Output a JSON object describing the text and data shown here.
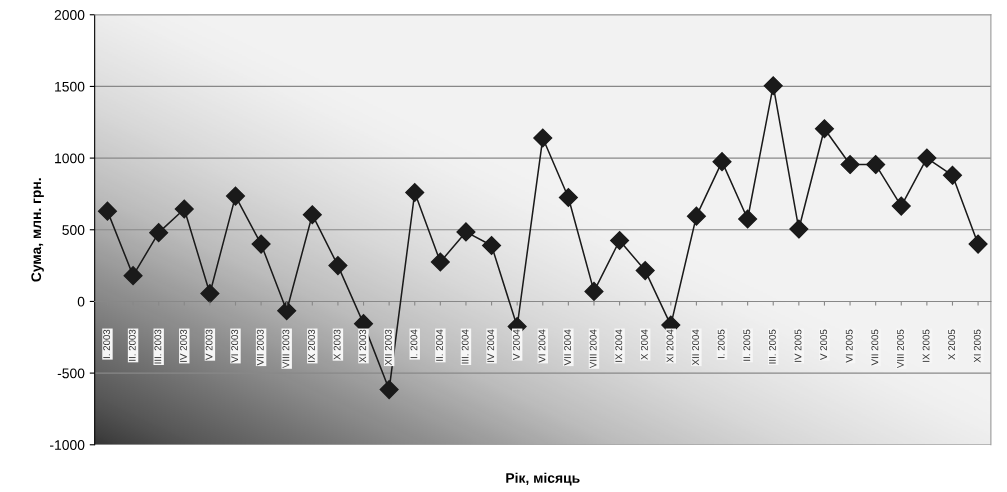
{
  "chart_data": {
    "type": "line",
    "xlabel": "Рік, місяць",
    "ylabel": "Сума, млн. грн.",
    "categories": [
      "I. 2003",
      "II. 2003",
      "III. 2003",
      "IV 2003",
      "V 2003",
      "VI 2003",
      "VII 2003",
      "VIII 2003",
      "IX 2003",
      "X 2003",
      "XI 2003",
      "XII 2003",
      "I. 2004",
      "II. 2004",
      "III. 2004",
      "IV 2004",
      "V 2004",
      "VI 2004",
      "VII 2004",
      "VIII 2004",
      "IX 2004",
      "X 2004",
      "XI 2004",
      "XII 2004",
      "I. 2005",
      "II. 2005",
      "III. 2005",
      "IV 2005",
      "V 2005",
      "VI 2005",
      "VII 2005",
      "VIII 2005",
      "IX 2005",
      "X 2005",
      "XI 2005"
    ],
    "series": [
      {
        "color": "#1a1a1a",
        "values": [
          630,
          180,
          480,
          645,
          55,
          735,
          400,
          -65,
          605,
          250,
          -155,
          -615,
          760,
          275,
          485,
          390,
          -175,
          1140,
          725,
          70,
          425,
          215,
          -165,
          595,
          975,
          575,
          1505,
          505,
          1205,
          955,
          955,
          665,
          1000,
          880,
          400
        ]
      }
    ],
    "ylim": [
      -1000,
      2000
    ],
    "yticks": [
      -1000,
      -500,
      0,
      500,
      1000,
      1500,
      2000
    ],
    "grid": "y",
    "marker": "diamond",
    "line_style": "solid"
  }
}
